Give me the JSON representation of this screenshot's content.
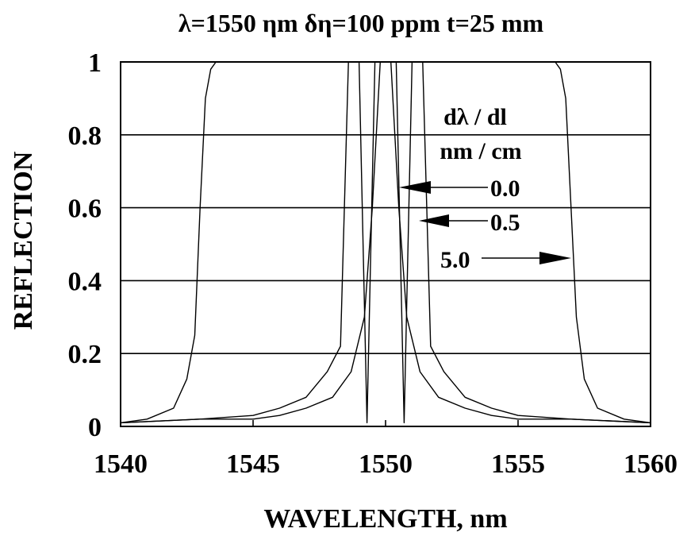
{
  "chart_data": {
    "type": "line",
    "title": "λ=1550 ηm  δη=100 ppm  t=25 mm",
    "xlabel": "WAVELENGTH, nm",
    "ylabel": "REFLECTION",
    "xlim": [
      1540,
      1560
    ],
    "ylim": [
      0,
      1
    ],
    "x_ticks": [
      "1540",
      "1545",
      "1550",
      "1555",
      "1560"
    ],
    "y_ticks": [
      "0",
      "0.2",
      "0.4",
      "0.6",
      "0.8",
      "1"
    ],
    "grid": "horizontal",
    "legend": {
      "title_line1": "dλ / dl",
      "title_line2": "nm / cm",
      "placement": "top-right",
      "entries": [
        "0.0",
        "0.5",
        "5.0"
      ]
    },
    "series": [
      {
        "name": "0.0",
        "x": [
          1540,
          1543,
          1545,
          1546,
          1547,
          1548,
          1548.7,
          1549.2,
          1549.5,
          1549.8,
          1550,
          1550.2,
          1550.5,
          1550.8,
          1551.3,
          1552,
          1553,
          1554,
          1555,
          1557,
          1560
        ],
        "y": [
          0.01,
          0.02,
          0.02,
          0.03,
          0.05,
          0.08,
          0.15,
          0.3,
          0.6,
          1,
          1,
          1,
          0.6,
          0.3,
          0.15,
          0.08,
          0.05,
          0.03,
          0.02,
          0.02,
          0.01
        ]
      },
      {
        "name": "0.5",
        "x": [
          1540,
          1543,
          1545,
          1546,
          1547,
          1547.8,
          1548.3,
          1548.6,
          1549,
          1549.3,
          1549.6,
          1550,
          1550.4,
          1550.7,
          1551.0,
          1551.4,
          1551.7,
          1552.2,
          1553,
          1554,
          1555,
          1557,
          1560
        ],
        "y": [
          0.01,
          0.02,
          0.03,
          0.05,
          0.08,
          0.15,
          0.22,
          1,
          1,
          0.01,
          1,
          1,
          1,
          0.01,
          1,
          1,
          0.22,
          0.15,
          0.08,
          0.05,
          0.03,
          0.02,
          0.01
        ]
      },
      {
        "name": "5.0",
        "x": [
          1540,
          1541,
          1542,
          1542.5,
          1542.8,
          1543,
          1543.2,
          1543.4,
          1543.6,
          1548,
          1552,
          1556.4,
          1556.6,
          1556.8,
          1557,
          1557.2,
          1557.5,
          1558,
          1559,
          1560
        ],
        "y": [
          0.01,
          0.02,
          0.05,
          0.13,
          0.25,
          0.6,
          0.9,
          0.98,
          1,
          1,
          1,
          1,
          0.98,
          0.9,
          0.6,
          0.3,
          0.13,
          0.05,
          0.02,
          0.01
        ]
      }
    ]
  }
}
